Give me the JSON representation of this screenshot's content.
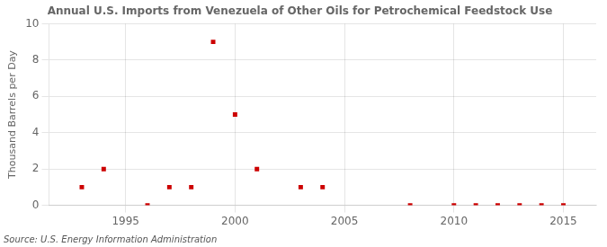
{
  "chart_data": {
    "type": "scatter",
    "title": "Annual U.S. Imports from Venezuela of Other Oils for Petrochemical Feedstock Use",
    "ylabel": "Thousand Barrels per Day",
    "annotation": "Source: U.S. Energy Information Administration",
    "x": [
      1993,
      1994,
      1996,
      1997,
      1998,
      1999,
      2000,
      2001,
      2003,
      2004,
      2008,
      2010,
      2011,
      2012,
      2013,
      2014,
      2015
    ],
    "values": [
      1,
      2,
      0,
      1,
      1,
      9,
      5,
      2,
      1,
      1,
      0,
      0,
      0,
      0,
      0,
      0,
      0
    ],
    "color": "#cc0000",
    "marker": "square",
    "xlim": [
      1991.5,
      2016.5
    ],
    "ylim": [
      0,
      10
    ],
    "xticks": [
      1995,
      2000,
      2005,
      2010,
      2015
    ],
    "yticks": [
      0,
      2,
      4,
      6,
      8,
      10
    ],
    "grid": true
  }
}
